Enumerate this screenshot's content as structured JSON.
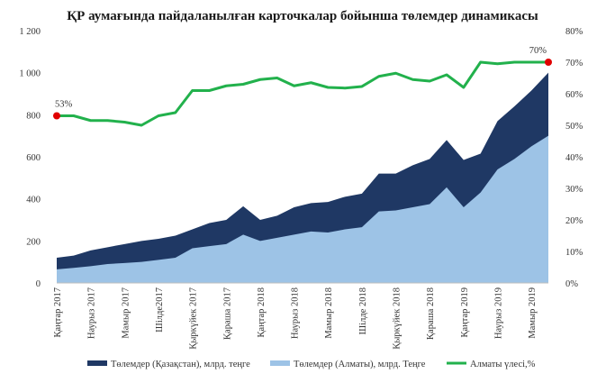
{
  "chart_data": {
    "type": "area",
    "title": "ҚР аумағында пайдаланылған карточкалар бойынша төлемдер динамикасы",
    "x": [
      "2017-01",
      "2017-02",
      "2017-03",
      "2017-04",
      "2017-05",
      "2017-06",
      "2017-07",
      "2017-08",
      "2017-09",
      "2017-10",
      "2017-11",
      "2017-12",
      "2018-01",
      "2018-02",
      "2018-03",
      "2018-04",
      "2018-05",
      "2018-06",
      "2018-07",
      "2018-08",
      "2018-09",
      "2018-10",
      "2018-11",
      "2018-12",
      "2019-01",
      "2019-02",
      "2019-03",
      "2019-04",
      "2019-05",
      "2019-06"
    ],
    "x_tick_labels": [
      "Қаңтар 2017",
      "",
      "Наурыз 2017",
      "",
      "Мамыр 2017",
      "",
      "Шілде2017",
      "",
      "Қыркүйек 2017",
      "",
      "Қараша 2017",
      "",
      "Қаңтар 2018",
      "",
      "Наурыз 2018",
      "",
      "Мамыр 2018",
      "",
      "Шілде 2018",
      "",
      "Қыркүйек 2018",
      "",
      "Қараша 2018",
      "",
      "Қаңтар 2019",
      "",
      "Наурыз 2019",
      "",
      "Мамыр 2019",
      ""
    ],
    "left_axis": {
      "ylim": [
        0,
        1200
      ],
      "ticks": [
        0,
        200,
        400,
        600,
        800,
        1000,
        1200
      ],
      "tick_labels": [
        "0",
        "200",
        "400",
        "600",
        "800",
        "1 000",
        "1 200"
      ]
    },
    "right_axis": {
      "ylim": [
        0,
        80
      ],
      "ticks": [
        0,
        10,
        20,
        30,
        40,
        50,
        60,
        70,
        80
      ],
      "tick_labels": [
        "0%",
        "10%",
        "20%",
        "30%",
        "40%",
        "50%",
        "60%",
        "70%",
        "80%"
      ]
    },
    "series": [
      {
        "name": "Төлемдер (Қазақстан), млрд. теңге",
        "kind": "area",
        "axis": "left",
        "color": "#1f3864",
        "values": [
          120,
          130,
          155,
          170,
          185,
          200,
          210,
          225,
          255,
          285,
          300,
          365,
          300,
          320,
          360,
          380,
          385,
          410,
          425,
          520,
          520,
          560,
          590,
          680,
          585,
          615,
          770,
          840,
          915,
          1000
        ]
      },
      {
        "name": "Төлемдер (Алматы), млрд. Теңге",
        "kind": "area",
        "axis": "left",
        "color": "#9dc3e6",
        "values": [
          65,
          72,
          80,
          90,
          95,
          100,
          110,
          120,
          165,
          175,
          185,
          230,
          200,
          215,
          230,
          245,
          240,
          255,
          265,
          340,
          345,
          360,
          375,
          455,
          360,
          430,
          540,
          590,
          650,
          700
        ]
      },
      {
        "name": "Алматы үлесі,%",
        "kind": "line",
        "axis": "right",
        "color": "#22b14c",
        "values": [
          53,
          53,
          51.5,
          51.5,
          51,
          50,
          53,
          54,
          61,
          61,
          62.5,
          63,
          64.5,
          65,
          62.5,
          63.5,
          62,
          61.8,
          62.3,
          65.5,
          66.5,
          64.5,
          64,
          66,
          62,
          70,
          69.5,
          70,
          70,
          70
        ]
      }
    ],
    "annotations": [
      {
        "series": 2,
        "index": 0,
        "label": "53%"
      },
      {
        "series": 2,
        "index": 29,
        "label": "70%"
      }
    ],
    "legend_position": "bottom",
    "grid": false
  }
}
